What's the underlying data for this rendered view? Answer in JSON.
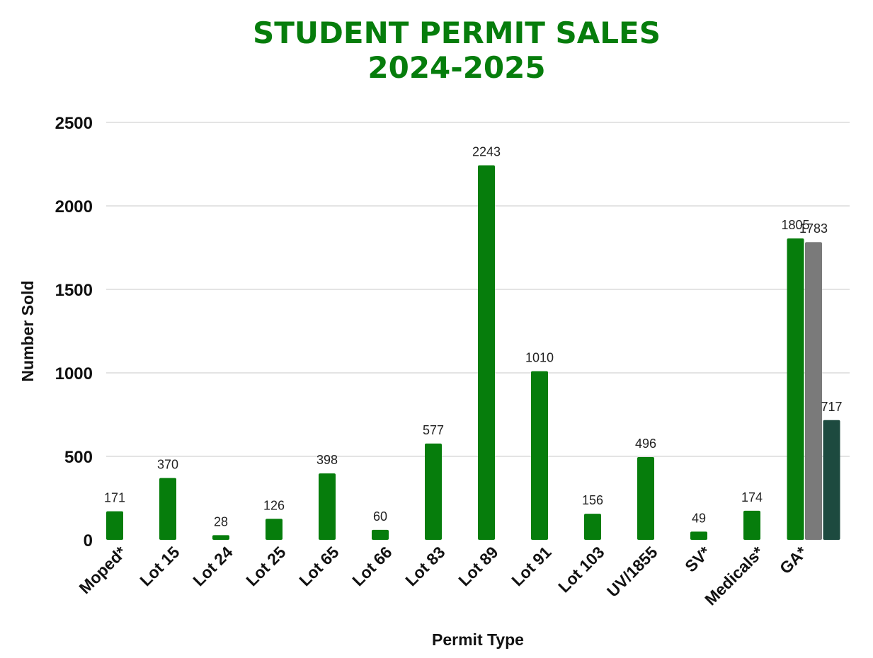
{
  "chart_data": {
    "type": "bar",
    "title_line1": "STUDENT PERMIT SALES",
    "title_line2": "2024-2025",
    "xlabel": "Permit Type",
    "ylabel": "Number Sold",
    "ylim": [
      0,
      2500
    ],
    "yticks": [
      "0",
      "500",
      "1000",
      "1500",
      "2000",
      "2500"
    ],
    "ytick_values": [
      0,
      500,
      1000,
      1500,
      2000,
      2500
    ],
    "grid": true,
    "categories": [
      "Moped*",
      "Lot 15",
      "Lot 24",
      "Lot 25",
      "Lot 65",
      "Lot 66",
      "Lot 83",
      "Lot 89",
      "Lot 91",
      "Lot 103",
      "UV/1855",
      "SV*",
      "Medicals*",
      "GA*"
    ],
    "values": [
      171,
      370,
      28,
      126,
      398,
      60,
      577,
      2243,
      1010,
      156,
      496,
      49,
      174,
      1805
    ],
    "extra_bars": [
      {
        "category": "GA*",
        "value": 1783
      },
      {
        "category": "GA*",
        "value": 717
      }
    ],
    "colors": {
      "primary": "#067d0c",
      "extra": [
        "#7a7a7a",
        "#1d4a3f"
      ],
      "title": "#067d0c"
    }
  }
}
